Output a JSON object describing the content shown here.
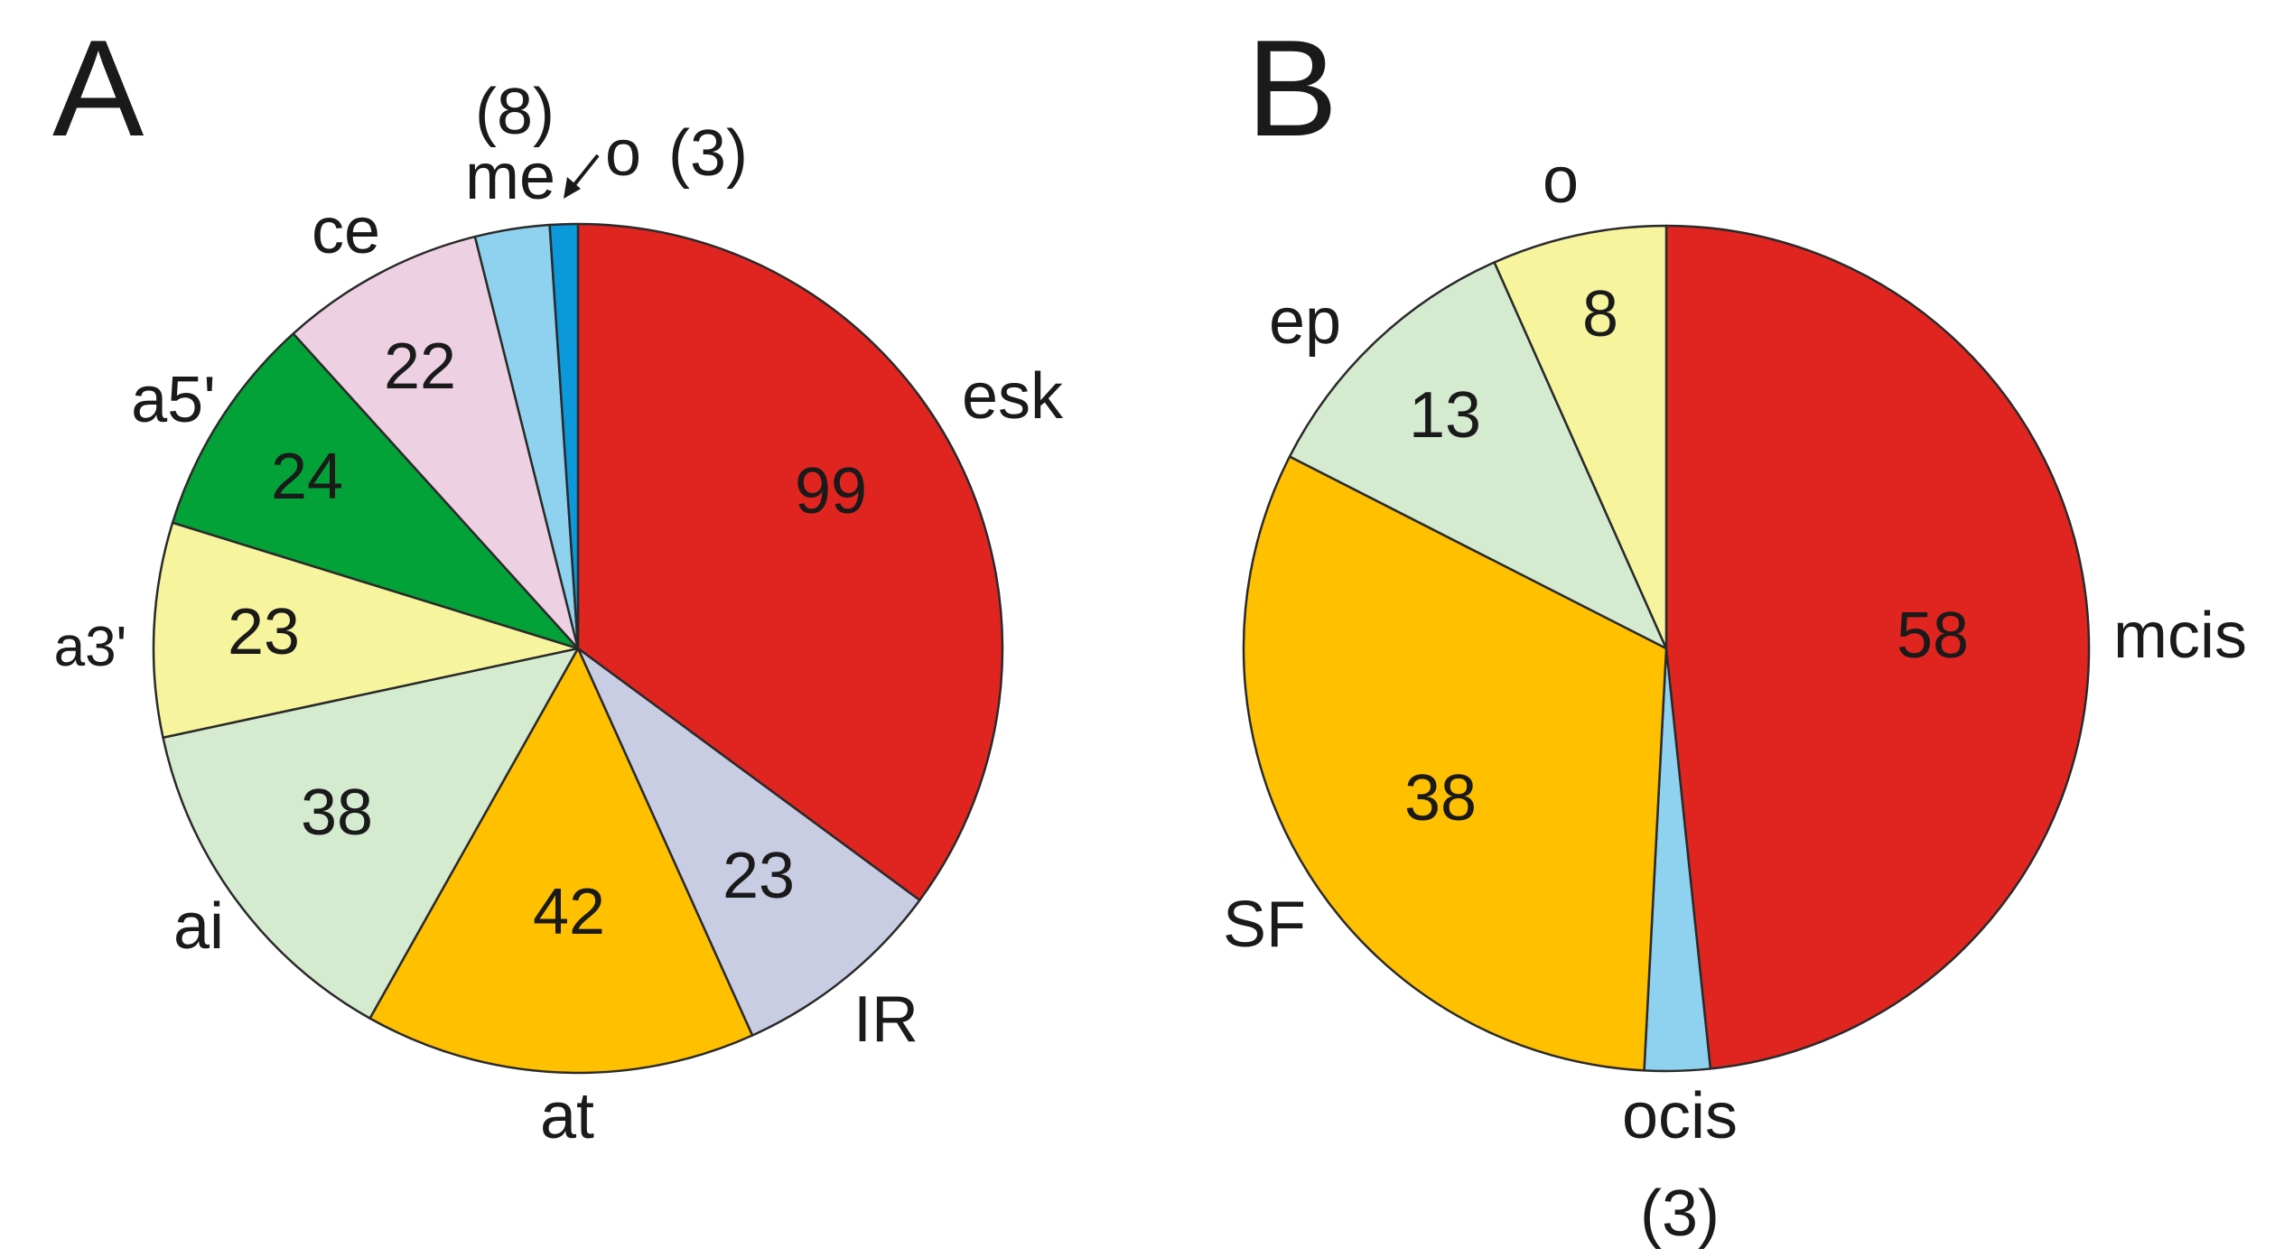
{
  "chart_data": [
    {
      "type": "pie",
      "panel": "A",
      "start": "top, clockwise",
      "slices": [
        {
          "label": "esk",
          "value": 99,
          "value_text": "99",
          "color": "#e02520"
        },
        {
          "label": "IR",
          "value": 23,
          "value_text": "23",
          "color": "#c8cde3"
        },
        {
          "label": "at",
          "value": 42,
          "value_text": "42",
          "color": "#ffc000"
        },
        {
          "label": "ai",
          "value": 38,
          "value_text": "38",
          "color": "#d5ebd0"
        },
        {
          "label": "a3'",
          "value": 23,
          "value_text": "23",
          "color": "#f6f49c"
        },
        {
          "label": "a5'",
          "value": 24,
          "value_text": "24",
          "color": "#03a238"
        },
        {
          "label": "ce",
          "value": 22,
          "value_text": "22",
          "color": "#eed0e3"
        },
        {
          "label": "me",
          "value": 8,
          "value_text": "(8)",
          "color": "#8ed2f0"
        },
        {
          "label": "o",
          "value": 3,
          "value_text": "(3)",
          "color": "#0b99dc"
        }
      ]
    },
    {
      "type": "pie",
      "panel": "B",
      "start": "top, clockwise",
      "slices": [
        {
          "label": "mcis",
          "value": 58,
          "value_text": "58",
          "color": "#e02520"
        },
        {
          "label": "ocis",
          "value": 3,
          "value_text": "(3)",
          "color": "#8ed2f0"
        },
        {
          "label": "SF",
          "value": 38,
          "value_text": "38",
          "color": "#ffc000"
        },
        {
          "label": "ep",
          "value": 13,
          "value_text": "13",
          "color": "#d5ebd0"
        },
        {
          "label": "o",
          "value": 8,
          "value_text": "8",
          "color": "#f6f49c"
        }
      ]
    }
  ]
}
